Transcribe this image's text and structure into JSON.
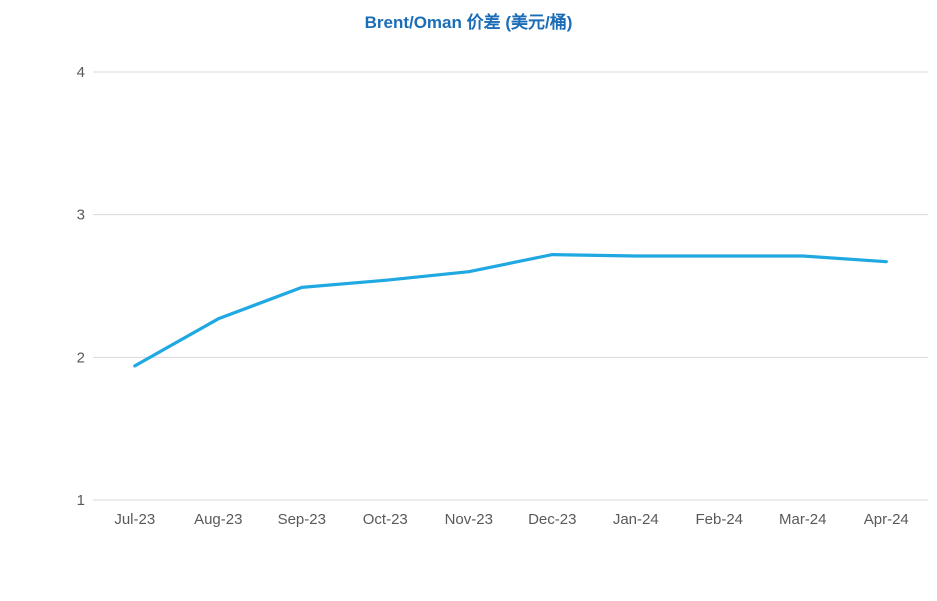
{
  "page": {
    "background": "#ffffff"
  },
  "chart_data": {
    "type": "line",
    "title": "Brent/Oman 价差 (美元/桶)",
    "categories": [
      "Jul-23",
      "Aug-23",
      "Sep-23",
      "Oct-23",
      "Nov-23",
      "Dec-23",
      "Jan-24",
      "Feb-24",
      "Mar-24",
      "Apr-24"
    ],
    "series": [
      {
        "name": "Brent/Oman 价差",
        "values": [
          1.94,
          2.27,
          2.49,
          2.54,
          2.6,
          2.72,
          2.71,
          2.71,
          2.71,
          2.67
        ],
        "color": "#1fa8e2"
      }
    ],
    "xlabel": "",
    "ylabel": "",
    "ylim": [
      1,
      4
    ],
    "yticks": [
      1,
      2,
      3,
      4
    ],
    "grid": "horizontal-only",
    "legend": "none",
    "markers": "none",
    "colors": {
      "title": "#1b6db8",
      "line": "#1fa8e2",
      "gridline": "#d9d9d9",
      "axis_label": "#595959",
      "background": "#ffffff"
    }
  }
}
